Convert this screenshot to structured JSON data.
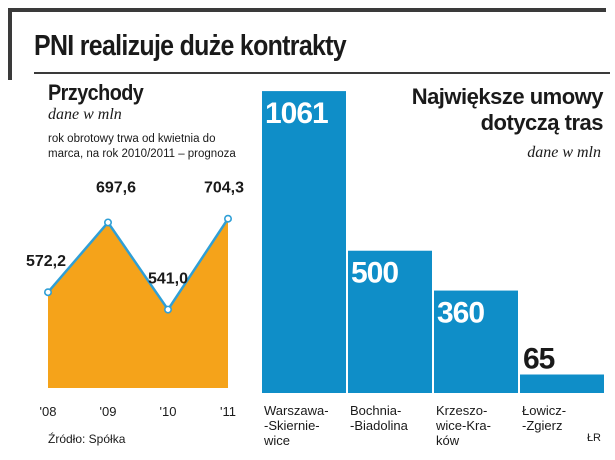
{
  "header": {
    "title": "PNI realizuje duże kontrakty"
  },
  "footer": {
    "source": "Źródło: Spółka",
    "credit": "ŁR"
  },
  "chart_data": [
    {
      "type": "area",
      "title": "Przychody",
      "subtitle": "dane w mln",
      "note": "rok obrotowy trwa od kwietnia do marca, na rok 2010/2011 – prognoza",
      "categories": [
        "'08",
        "'09",
        "'10",
        "'11"
      ],
      "values": [
        572.2,
        697.6,
        541.0,
        704.3
      ],
      "value_labels": [
        "572,2",
        "697,6",
        "541,0",
        "704,3"
      ],
      "ylim": [
        400,
        720
      ],
      "grid": false,
      "colors": {
        "fill": "#f5a31a",
        "line": "#2f9fd6"
      }
    },
    {
      "type": "bar",
      "title": [
        "Największe umowy",
        "dotyczą tras"
      ],
      "subtitle": "dane w mln",
      "categories": [
        [
          "Warszawa-",
          "-Skiernie-",
          "wice"
        ],
        [
          "Bochnia-",
          "-Biadolina"
        ],
        [
          "Krzeszo-",
          "wice-Kra-",
          "ków"
        ],
        [
          "Łowicz-",
          "-Zgierz"
        ]
      ],
      "values": [
        1061,
        500,
        360,
        65
      ],
      "value_labels": [
        "1061",
        "500",
        "360",
        "65"
      ],
      "ylim": [
        0,
        1100
      ],
      "grid": false,
      "colors": {
        "bar": "#0f8ec8",
        "label": "#ffffff",
        "label_outside": "#1a1a1a"
      }
    }
  ]
}
